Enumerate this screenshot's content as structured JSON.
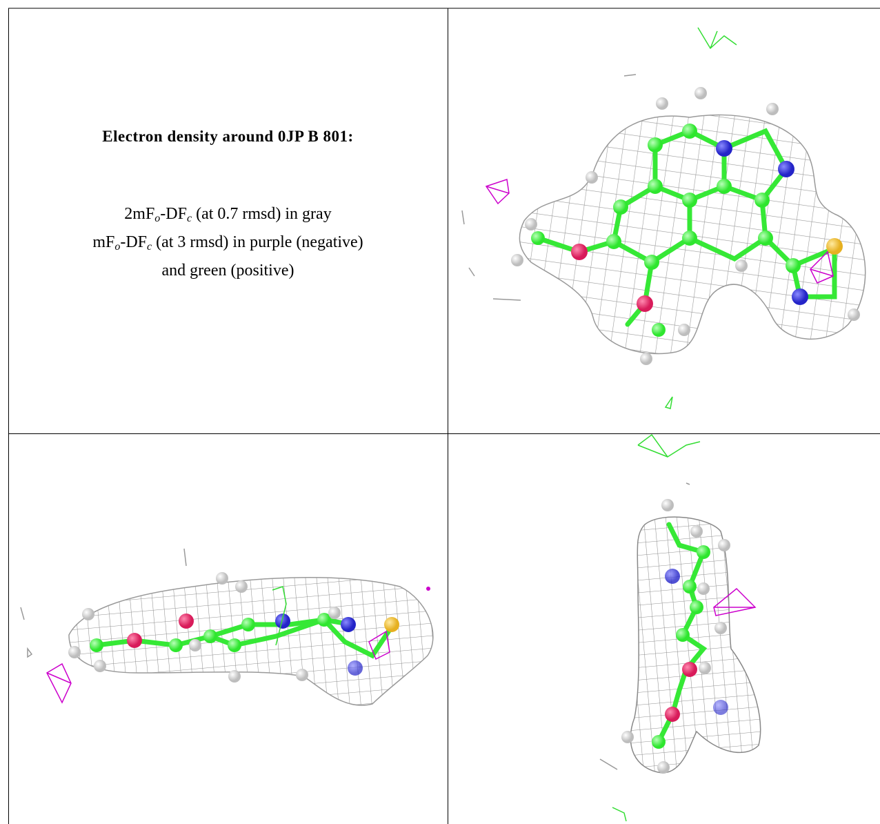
{
  "caption": {
    "title": "Electron density around 0JP B 801:",
    "lines": [
      [
        "2mF",
        "o",
        "-DF",
        "c",
        " (at 0.7 rmsd) in gray"
      ],
      [
        "mF",
        "o",
        "-DF",
        "c",
        " (at 3 rmsd) in purple (negative)"
      ],
      [
        "and green (positive)"
      ]
    ]
  }
}
